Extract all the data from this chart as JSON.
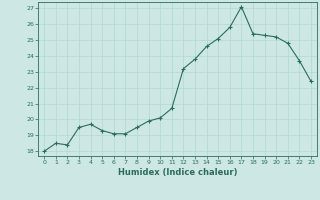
{
  "x": [
    0,
    1,
    2,
    3,
    4,
    5,
    6,
    7,
    8,
    9,
    10,
    11,
    12,
    13,
    14,
    15,
    16,
    17,
    18,
    19,
    20,
    21,
    22,
    23
  ],
  "y": [
    18.0,
    18.5,
    18.4,
    19.5,
    19.7,
    19.3,
    19.1,
    19.1,
    19.5,
    19.9,
    20.1,
    20.7,
    23.2,
    23.8,
    24.6,
    25.1,
    25.8,
    27.1,
    25.4,
    25.3,
    25.2,
    24.8,
    23.7,
    22.4
  ],
  "xlabel": "Humidex (Indice chaleur)",
  "bg_color": "#cde8e4",
  "line_color": "#2d6b5e",
  "marker_color": "#2d6b5e",
  "grid_color": "#b0d8d0",
  "yticks": [
    18,
    19,
    20,
    21,
    22,
    23,
    24,
    25,
    26,
    27
  ],
  "xticks": [
    0,
    1,
    2,
    3,
    4,
    5,
    6,
    7,
    8,
    9,
    10,
    11,
    12,
    13,
    14,
    15,
    16,
    17,
    18,
    19,
    20,
    21,
    22,
    23
  ],
  "ylim": [
    17.7,
    27.4
  ],
  "xlim": [
    -0.5,
    23.5
  ]
}
